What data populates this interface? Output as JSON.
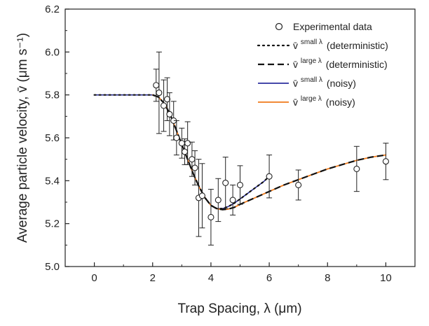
{
  "chart_data": {
    "type": "line",
    "xlabel": "Trap Spacing, λ (μm)",
    "ylabel": "Average particle velocity, v̄ (μm s⁻¹)",
    "xlim": [
      -1,
      11
    ],
    "ylim": [
      5.0,
      6.2
    ],
    "x_ticks": [
      0,
      2,
      4,
      6,
      8,
      10
    ],
    "y_ticks": [
      5.0,
      5.2,
      5.4,
      5.6,
      5.8,
      6.0,
      6.2
    ],
    "x_tick_labels": [
      "0",
      "2",
      "4",
      "6",
      "8",
      "10"
    ],
    "y_tick_labels": [
      "5.0",
      "5.2",
      "5.4",
      "5.6",
      "5.8",
      "6.0",
      "6.2"
    ],
    "grid": false,
    "legend_position": "top-right",
    "legend": {
      "experimental": "Experimental data",
      "small_det": {
        "base": "v̄",
        "sup": "small λ",
        "suffix": "(deterministic)"
      },
      "large_det": {
        "base": "v̄",
        "sup": "large λ",
        "suffix": "(deterministic)"
      },
      "small_noisy": {
        "base": "v̄",
        "sup": "small λ",
        "suffix": "(noisy)"
      },
      "large_noisy": {
        "base": "v̄",
        "sup": "large λ",
        "suffix": "(noisy)"
      }
    },
    "colors": {
      "deterministic": "#111111",
      "small_noisy": "#2b2f9e",
      "large_noisy": "#f07a1a",
      "errorbar": "#222222"
    },
    "experimental": [
      {
        "x": 2.12,
        "y": 5.845,
        "err": 0.075
      },
      {
        "x": 2.22,
        "y": 5.81,
        "err": 0.19
      },
      {
        "x": 2.38,
        "y": 5.75,
        "err": 0.12
      },
      {
        "x": 2.5,
        "y": 5.78,
        "err": 0.1
      },
      {
        "x": 2.58,
        "y": 5.71,
        "err": 0.1
      },
      {
        "x": 2.72,
        "y": 5.68,
        "err": 0.09
      },
      {
        "x": 2.82,
        "y": 5.6,
        "err": 0.08
      },
      {
        "x": 3.0,
        "y": 5.575,
        "err": 0.07
      },
      {
        "x": 3.1,
        "y": 5.535,
        "err": 0.06
      },
      {
        "x": 3.2,
        "y": 5.575,
        "err": 0.1
      },
      {
        "x": 3.35,
        "y": 5.5,
        "err": 0.08
      },
      {
        "x": 3.45,
        "y": 5.46,
        "err": 0.08
      },
      {
        "x": 3.58,
        "y": 5.32,
        "err": 0.18
      },
      {
        "x": 3.7,
        "y": 5.33,
        "err": 0.15
      },
      {
        "x": 4.0,
        "y": 5.23,
        "err": 0.13
      },
      {
        "x": 4.25,
        "y": 5.31,
        "err": 0.1
      },
      {
        "x": 4.5,
        "y": 5.39,
        "err": 0.12
      },
      {
        "x": 4.75,
        "y": 5.31,
        "err": 0.07
      },
      {
        "x": 5.0,
        "y": 5.38,
        "err": 0.09
      },
      {
        "x": 6.0,
        "y": 5.42,
        "err": 0.1
      },
      {
        "x": 7.0,
        "y": 5.38,
        "err": 0.07
      },
      {
        "x": 9.0,
        "y": 5.455,
        "err": 0.105
      },
      {
        "x": 10.0,
        "y": 5.49,
        "err": 0.085
      }
    ],
    "series": [
      {
        "key": "small_det",
        "style": "dotted",
        "x": [
          0,
          0.5,
          1.0,
          1.5,
          1.8,
          2.0,
          2.2,
          2.4,
          2.6,
          2.8,
          3.0,
          3.2,
          3.4,
          3.6,
          3.8,
          4.0,
          4.2,
          4.4,
          4.6,
          4.8,
          5.0,
          5.2,
          5.4,
          5.6,
          5.8,
          6.0
        ],
        "y": [
          5.8,
          5.8,
          5.8,
          5.8,
          5.8,
          5.8,
          5.79,
          5.76,
          5.71,
          5.64,
          5.57,
          5.5,
          5.43,
          5.37,
          5.32,
          5.285,
          5.27,
          5.27,
          5.28,
          5.295,
          5.315,
          5.335,
          5.355,
          5.375,
          5.395,
          5.42
        ]
      },
      {
        "key": "large_det",
        "style": "dashed",
        "x": [
          2.0,
          2.2,
          2.4,
          2.6,
          2.8,
          3.0,
          3.2,
          3.4,
          3.6,
          3.8,
          4.0,
          4.2,
          4.4,
          4.6,
          4.8,
          5.0,
          5.5,
          6.0,
          6.5,
          7.0,
          7.5,
          8.0,
          8.5,
          9.0,
          9.5,
          10.0
        ],
        "y": [
          5.8,
          5.79,
          5.76,
          5.71,
          5.64,
          5.57,
          5.5,
          5.43,
          5.37,
          5.32,
          5.285,
          5.27,
          5.265,
          5.268,
          5.276,
          5.29,
          5.32,
          5.35,
          5.38,
          5.405,
          5.43,
          5.455,
          5.475,
          5.495,
          5.51,
          5.52
        ]
      },
      {
        "key": "small_noisy",
        "style": "solid",
        "x": [
          0,
          0.5,
          1.0,
          1.5,
          1.8,
          2.0,
          2.2,
          2.4,
          2.6,
          2.8,
          3.0,
          3.2,
          3.4,
          3.6,
          3.8,
          4.0,
          4.2,
          4.4,
          4.6,
          4.8,
          5.0,
          5.2,
          5.4,
          5.6,
          5.8,
          6.0
        ],
        "y": [
          5.8,
          5.8,
          5.8,
          5.8,
          5.8,
          5.8,
          5.79,
          5.76,
          5.71,
          5.64,
          5.57,
          5.5,
          5.43,
          5.37,
          5.32,
          5.285,
          5.27,
          5.27,
          5.28,
          5.295,
          5.315,
          5.335,
          5.355,
          5.375,
          5.395,
          5.42
        ]
      },
      {
        "key": "large_noisy",
        "style": "solid",
        "x": [
          2.0,
          2.2,
          2.4,
          2.6,
          2.8,
          3.0,
          3.2,
          3.4,
          3.6,
          3.8,
          4.0,
          4.2,
          4.4,
          4.6,
          4.8,
          5.0,
          5.5,
          6.0,
          6.5,
          7.0,
          7.5,
          8.0,
          8.5,
          9.0,
          9.5,
          10.0
        ],
        "y": [
          5.8,
          5.79,
          5.76,
          5.71,
          5.64,
          5.57,
          5.5,
          5.43,
          5.37,
          5.32,
          5.285,
          5.27,
          5.265,
          5.268,
          5.276,
          5.29,
          5.32,
          5.35,
          5.38,
          5.405,
          5.43,
          5.455,
          5.475,
          5.495,
          5.51,
          5.52
        ]
      }
    ]
  }
}
